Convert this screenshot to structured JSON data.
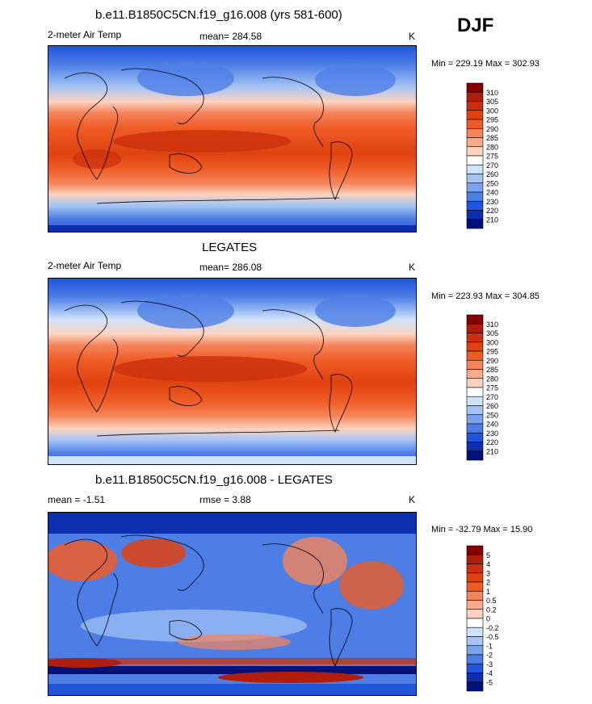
{
  "season": "DJF",
  "chart_data": [
    {
      "type": "heatmap",
      "title": "b.e11.B1850C5CN.f19_g16.008 (yrs 581-600)",
      "variable": "2-meter Air Temp",
      "stat_label": "mean=",
      "stat_value": "284.58",
      "units": "K",
      "minmax": "Min = 229.19 Max = 302.93",
      "colorbar": {
        "labels": [
          "310",
          "305",
          "300",
          "295",
          "290",
          "285",
          "280",
          "275",
          "270",
          "260",
          "250",
          "240",
          "230",
          "220",
          "210"
        ],
        "colors": [
          "#850000",
          "#b11d0a",
          "#cc2f0d",
          "#e0420f",
          "#ee5c26",
          "#f5845a",
          "#f9ab8c",
          "#fcd3bf",
          "#ffffff",
          "#cfe3fb",
          "#a4c4f4",
          "#7ba2ed",
          "#4d7ee6",
          "#1f54dc",
          "#0c2fb0",
          "#001278"
        ]
      }
    },
    {
      "type": "heatmap",
      "title": "LEGATES",
      "variable": "2-meter Air Temp",
      "stat_label": "mean=",
      "stat_value": "286.08",
      "units": "K",
      "minmax": "Min = 223.93 Max = 304.85",
      "colorbar": {
        "labels": [
          "310",
          "305",
          "300",
          "295",
          "290",
          "285",
          "280",
          "275",
          "270",
          "260",
          "250",
          "240",
          "230",
          "220",
          "210"
        ],
        "colors": [
          "#850000",
          "#b11d0a",
          "#cc2f0d",
          "#e0420f",
          "#ee5c26",
          "#f5845a",
          "#f9ab8c",
          "#fcd3bf",
          "#ffffff",
          "#cfe3fb",
          "#a4c4f4",
          "#7ba2ed",
          "#4d7ee6",
          "#1f54dc",
          "#0c2fb0",
          "#001278"
        ]
      }
    },
    {
      "type": "heatmap",
      "title": "b.e11.B1850C5CN.f19_g16.008 - LEGATES",
      "stat_label": "mean =",
      "stat_value": "-1.51",
      "rmse_label": "rmse =",
      "rmse_value": "3.88",
      "units": "K",
      "minmax": "Min = -32.79 Max =  15.90",
      "colorbar": {
        "labels": [
          "5",
          "4",
          "3",
          "2",
          "1",
          "0.5",
          "0.2",
          "0",
          "-0.2",
          "-0.5",
          "-1",
          "-2",
          "-3",
          "-4",
          "-5"
        ],
        "colors": [
          "#850000",
          "#b11d0a",
          "#cc2f0d",
          "#e0420f",
          "#ee5c26",
          "#f5845a",
          "#f9ab8c",
          "#fcd3bf",
          "#ffffff",
          "#cfe3fb",
          "#a4c4f4",
          "#7ba2ed",
          "#4d7ee6",
          "#1f54dc",
          "#0c2fb0",
          "#001278"
        ]
      }
    }
  ]
}
